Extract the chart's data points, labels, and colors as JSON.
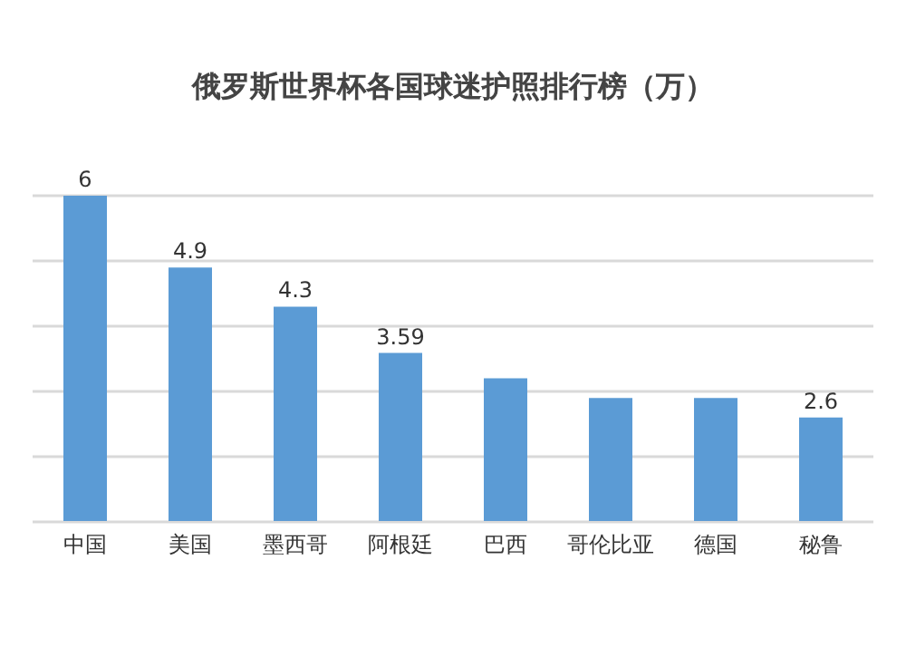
{
  "chart_data": {
    "type": "bar",
    "title": "俄罗斯世界杯各国球迷护照排行榜（万）",
    "categories": [
      "中国",
      "美国",
      "墨西哥",
      "阿根廷",
      "巴西",
      "哥伦比亚",
      "德国",
      "秘鲁"
    ],
    "values": [
      6,
      4.9,
      4.3,
      3.59,
      3.2,
      2.9,
      2.9,
      2.6
    ],
    "value_labels": [
      "6",
      "4.9",
      "4.3",
      "3.59",
      null,
      null,
      null,
      "2.6"
    ],
    "color": "#5b9bd5",
    "ylim": [
      1,
      6
    ],
    "yticks": [
      {
        "value": 1,
        "label": null
      },
      {
        "value": 2,
        "label": null
      },
      {
        "value": 3,
        "label": null
      },
      {
        "value": 4,
        "label": null
      },
      {
        "value": 5,
        "label": null
      },
      {
        "value": 6,
        "label": null
      }
    ],
    "grid": "y",
    "tick_labels": "x"
  }
}
